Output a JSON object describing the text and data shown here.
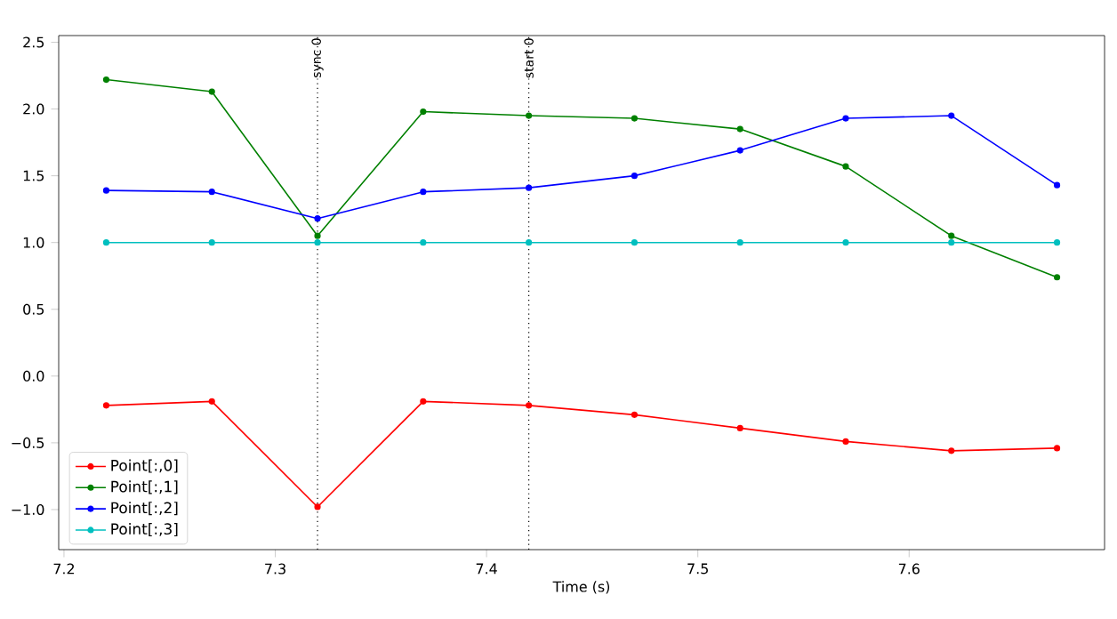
{
  "chart_data": {
    "type": "line",
    "xlabel": "Time (s)",
    "x": [
      7.22,
      7.27,
      7.32,
      7.37,
      7.42,
      7.47,
      7.52,
      7.57,
      7.62,
      7.67
    ],
    "series": [
      {
        "name": "Point[:,0]",
        "color": "#ff0000",
        "values": [
          -0.22,
          -0.19,
          -0.98,
          -0.19,
          -0.22,
          -0.29,
          -0.39,
          -0.49,
          -0.56,
          -0.54
        ]
      },
      {
        "name": "Point[:,1]",
        "color": "#008000",
        "values": [
          2.22,
          2.13,
          1.05,
          1.98,
          1.95,
          1.93,
          1.85,
          1.57,
          1.05,
          0.74
        ]
      },
      {
        "name": "Point[:,2]",
        "color": "#0000ff",
        "values": [
          1.39,
          1.38,
          1.18,
          1.38,
          1.41,
          1.5,
          1.69,
          1.93,
          1.95,
          1.43
        ]
      },
      {
        "name": "Point[:,3]",
        "color": "#00bfbf",
        "values": [
          1.0,
          1.0,
          1.0,
          1.0,
          1.0,
          1.0,
          1.0,
          1.0,
          1.0,
          1.0
        ]
      }
    ],
    "xlim": [
      7.1975,
      7.6925
    ],
    "ylim": [
      -1.3,
      2.55
    ],
    "xticks": [
      7.2,
      7.3,
      7.4,
      7.5,
      7.6
    ],
    "yticks": [
      {
        "value": -1.0,
        "label": "−1.0"
      },
      {
        "value": -0.5,
        "label": "−0.5"
      },
      {
        "value": 0.0,
        "label": "0.0"
      },
      {
        "value": 0.5,
        "label": "0.5"
      },
      {
        "value": 1.0,
        "label": "1.0"
      },
      {
        "value": 1.5,
        "label": "1.5"
      },
      {
        "value": 2.0,
        "label": "2.0"
      },
      {
        "value": 2.5,
        "label": "2.5"
      }
    ],
    "ref_lines": [
      {
        "axis": "x",
        "value": 7.32,
        "label": "sync 0",
        "color": "#000000",
        "line_style": "dotted"
      },
      {
        "axis": "x",
        "value": 7.42,
        "label": "start 0",
        "color": "#000000",
        "line_style": "dotted"
      }
    ],
    "legend": "bottom left",
    "marker": "circle",
    "line_style": "solid",
    "grid": false
  }
}
